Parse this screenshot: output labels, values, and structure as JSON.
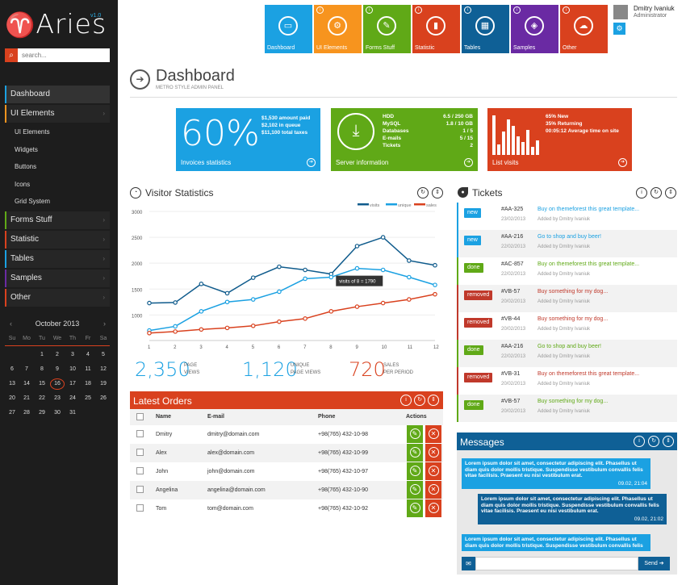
{
  "brand": {
    "name": "Aries",
    "version": "v1.0"
  },
  "search": {
    "placeholder": "search..."
  },
  "sidebar": {
    "items": [
      {
        "label": "Dashboard",
        "color": "#1ba1e2"
      },
      {
        "label": "UI Elements",
        "color": "#f7941e"
      },
      {
        "label": "Forms Stuff",
        "color": "#60a917"
      },
      {
        "label": "Statistic",
        "color": "#d9411e"
      },
      {
        "label": "Tables",
        "color": "#1ba1e2"
      },
      {
        "label": "Samples",
        "color": "#6a2aa3"
      },
      {
        "label": "Other",
        "color": "#d9411e"
      }
    ],
    "subitems": [
      "UI Elements",
      "Widgets",
      "Buttons",
      "Icons",
      "Grid System"
    ]
  },
  "calendar": {
    "title": "October 2013",
    "dow": [
      "Su",
      "Mo",
      "Tu",
      "We",
      "Th",
      "Fr",
      "Sa"
    ],
    "weeks": [
      [
        "",
        "",
        "1",
        "2",
        "3",
        "4",
        "5"
      ],
      [
        "6",
        "7",
        "8",
        "9",
        "10",
        "11",
        "12"
      ],
      [
        "13",
        "14",
        "15",
        "16",
        "17",
        "18",
        "19"
      ],
      [
        "20",
        "21",
        "22",
        "23",
        "24",
        "25",
        "26"
      ],
      [
        "27",
        "28",
        "29",
        "30",
        "31",
        "",
        ""
      ]
    ],
    "today": "16"
  },
  "tiles": [
    {
      "label": "Dashboard",
      "color": "#1ba1e2",
      "icon": "monitor-icon",
      "glyph": "▭"
    },
    {
      "label": "UI Elements",
      "color": "#f7941e",
      "icon": "gear-icon",
      "glyph": "⚙"
    },
    {
      "label": "Forms Stuff",
      "color": "#60a917",
      "icon": "pencil-icon",
      "glyph": "✎"
    },
    {
      "label": "Statistic",
      "color": "#d9411e",
      "icon": "bar-chart-icon",
      "glyph": "▮"
    },
    {
      "label": "Tables",
      "color": "#0f6096",
      "icon": "grid-icon",
      "glyph": "▦"
    },
    {
      "label": "Samples",
      "color": "#6a2aa3",
      "icon": "box-icon",
      "glyph": "◈"
    },
    {
      "label": "Other",
      "color": "#d9411e",
      "icon": "cloud-icon",
      "glyph": "☁"
    }
  ],
  "user": {
    "name": "Dmitry Ivaniuk",
    "role": "Administrator"
  },
  "page": {
    "title": "Dashboard",
    "subtitle": "METRO STYLE ADMIN PANEL"
  },
  "invoices": {
    "percent": "60%",
    "label": "Invoices statistics",
    "lines": [
      "$1,530 amount paid",
      "$2,102 in queue",
      "$11,100 total taxes"
    ]
  },
  "server": {
    "label": "Server information",
    "rows": [
      {
        "k": "HDD",
        "v": "6.5 / 250 GB"
      },
      {
        "k": "MySQL",
        "v": "1.8 / 10 GB"
      },
      {
        "k": "Databases",
        "v": "1 / 5"
      },
      {
        "k": "E-mails",
        "v": "5 / 15"
      },
      {
        "k": "Tickets",
        "v": "2"
      }
    ]
  },
  "visits": {
    "label": "List visits",
    "lines": [
      "65% New",
      "35% Returning",
      "00:05:12 Average time on site"
    ],
    "bars": [
      0.95,
      0.25,
      0.55,
      0.85,
      0.7,
      0.45,
      0.3,
      0.6,
      0.2,
      0.35
    ]
  },
  "visitor": {
    "title": "Visitor Statistics",
    "legend": [
      "visits",
      "unique",
      "sales"
    ],
    "tooltip": "visits of 8 = 1790",
    "summary": [
      {
        "value": "2,350",
        "label1": "PAGE",
        "label2": "VIEWS",
        "color": "#1ba1e2"
      },
      {
        "value": "1,120",
        "label1": "UNIQUE",
        "label2": "PAGE VIEWS",
        "color": "#1ba1e2"
      },
      {
        "value": "720",
        "label1": "SALES",
        "label2": "PER PERIOD",
        "color": "#d9411e"
      }
    ]
  },
  "chart_data": {
    "type": "line",
    "x": [
      1,
      2,
      3,
      4,
      5,
      6,
      7,
      8,
      9,
      10,
      11,
      12
    ],
    "yticks": [
      1000,
      1500,
      2000,
      2500,
      3000
    ],
    "ylim": [
      600,
      3000
    ],
    "series": [
      {
        "name": "visits",
        "color": "#0f5b8c",
        "values": [
          1230,
          1240,
          1600,
          1420,
          1720,
          1930,
          1870,
          1790,
          2330,
          2500,
          2050,
          1960
        ]
      },
      {
        "name": "unique",
        "color": "#1ba1e2",
        "values": [
          700,
          780,
          1070,
          1250,
          1300,
          1450,
          1700,
          1730,
          1900,
          1870,
          1730,
          1580
        ]
      },
      {
        "name": "sales",
        "color": "#d9411e",
        "values": [
          650,
          680,
          720,
          750,
          790,
          870,
          930,
          1070,
          1160,
          1230,
          1300,
          1400
        ]
      }
    ]
  },
  "tickets": {
    "title": "Tickets",
    "items": [
      {
        "tag": "new",
        "tagColor": "#1ba1e2",
        "id": "#AA-325",
        "date": "23/02/2013",
        "text": "Buy on themeforest this great template...",
        "textColor": "#1ba1e2",
        "by": "Added by Dmitry Ivaniuk"
      },
      {
        "tag": "new",
        "tagColor": "#1ba1e2",
        "id": "#AA-216",
        "date": "22/02/2013",
        "text": "Go to shop and buy beer!",
        "textColor": "#1ba1e2",
        "by": "Added by Dmitry Ivaniuk"
      },
      {
        "tag": "done",
        "tagColor": "#60a917",
        "id": "#AC-857",
        "date": "22/02/2013",
        "text": "Buy on themeforest this great template...",
        "textColor": "#60a917",
        "by": "Added by Dmitry Ivaniuk"
      },
      {
        "tag": "removed",
        "tagColor": "#c0392b",
        "id": "#VB-57",
        "date": "20/02/2013",
        "text": "Buy something for my dog...",
        "textColor": "#c0392b",
        "by": "Added by Dmitry Ivaniuk"
      },
      {
        "tag": "removed",
        "tagColor": "#c0392b",
        "id": "#VB-44",
        "date": "20/02/2013",
        "text": "Buy something for my dog...",
        "textColor": "#c0392b",
        "by": "Added by Dmitry Ivaniuk"
      },
      {
        "tag": "done",
        "tagColor": "#60a917",
        "id": "#AA-216",
        "date": "22/02/2013",
        "text": "Go to shop and buy beer!",
        "textColor": "#60a917",
        "by": "Added by Dmitry Ivaniuk"
      },
      {
        "tag": "removed",
        "tagColor": "#c0392b",
        "id": "#VB-31",
        "date": "20/02/2013",
        "text": "Buy on themeforest this great template...",
        "textColor": "#c0392b",
        "by": "Added by Dmitry Ivaniuk"
      },
      {
        "tag": "done",
        "tagColor": "#60a917",
        "id": "#VB-57",
        "date": "20/02/2013",
        "text": "Buy something for my dog...",
        "textColor": "#60a917",
        "by": "Added by Dmitry Ivaniuk"
      }
    ]
  },
  "orders": {
    "title": "Latest Orders",
    "columns": [
      "Name",
      "E-mail",
      "Phone",
      "Actions"
    ],
    "rows": [
      {
        "name": "Dmitry",
        "email": "dmitry@domain.com",
        "phone": "+98(765) 432-10-98"
      },
      {
        "name": "Alex",
        "email": "alex@domain.com",
        "phone": "+98(765) 432-10-99"
      },
      {
        "name": "John",
        "email": "john@domain.com",
        "phone": "+98(765) 432-10-97"
      },
      {
        "name": "Angelina",
        "email": "angelina@domain.com",
        "phone": "+98(765) 432-10-90"
      },
      {
        "name": "Tom",
        "email": "tom@domain.com",
        "phone": "+98(765) 432-10-92"
      }
    ]
  },
  "messages": {
    "title": "Messages",
    "send": "Send",
    "items": [
      {
        "text": "Lorem ipsum dolor sit amet, consectetur adipiscing elit. Phasellus ut diam quis dolor mollis tristique. Suspendisse vestibulum convallis felis vitae facilisis. Praesent eu nisi vestibulum erat.",
        "date": "09.02, 21:04",
        "color": "#1ba1e2",
        "side": "left"
      },
      {
        "text": "Lorem ipsum dolor sit amet, consectetur adipiscing elit. Phasellus ut diam quis dolor mollis tristique. Suspendisse vestibulum convallis felis vitae facilisis. Praesent eu nisi vestibulum erat.",
        "date": "09.02, 21:02",
        "color": "#0f6096",
        "side": "right"
      },
      {
        "text": "Lorem ipsum dolor sit amet, consectetur adipiscing elit. Phasellus ut diam quis dolor mollis tristique. Suspendisse vestibulum convallis felis",
        "date": "",
        "color": "#1ba1e2",
        "side": "left"
      }
    ]
  }
}
